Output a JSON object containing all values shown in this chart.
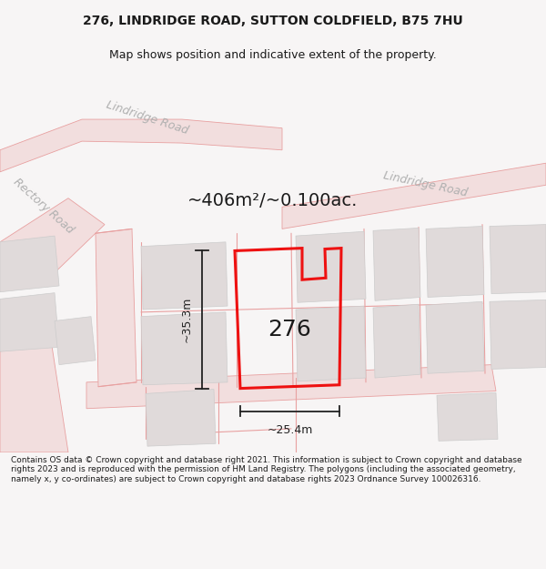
{
  "title": "276, LINDRIDGE ROAD, SUTTON COLDFIELD, B75 7HU",
  "subtitle": "Map shows position and indicative extent of the property.",
  "area_text": "~406m²/~0.100ac.",
  "label_276": "276",
  "dim_height": "~35.3m",
  "dim_width": "~25.4m",
  "footer": "Contains OS data © Crown copyright and database right 2021. This information is subject to Crown copyright and database rights 2023 and is reproduced with the permission of HM Land Registry. The polygons (including the associated geometry, namely x, y co-ordinates) are subject to Crown copyright and database rights 2023 Ordnance Survey 100026316.",
  "bg_color": "#f7f5f5",
  "map_bg": "#f7f5f5",
  "road_fill": "#f2dede",
  "road_line": "#e8a0a0",
  "building_fill": "#e0dada",
  "building_edge": "#cccccc",
  "plot_color": "#ee1111",
  "road_label_color": "#b0b0b0",
  "dim_color": "#222222",
  "title_color": "#1a1a1a",
  "footer_color": "#1a1a1a",
  "title_fontsize": 10,
  "subtitle_fontsize": 9,
  "area_fontsize": 14,
  "label_fontsize": 18,
  "dim_fontsize": 9,
  "road_label_fontsize": 9,
  "footer_fontsize": 6.5
}
